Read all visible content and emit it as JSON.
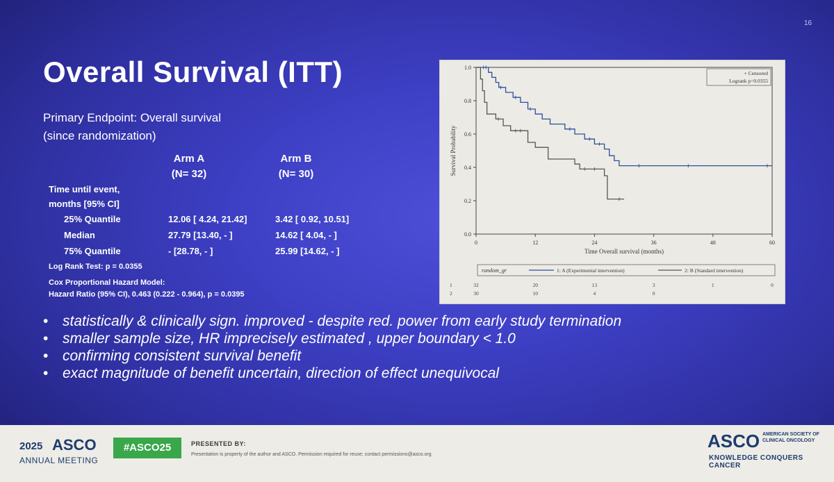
{
  "slide": {
    "number": "16",
    "title": "Overall Survival (ITT)",
    "primary_endpoint_line1": "Primary Endpoint: Overall survival",
    "primary_endpoint_line2": "(since randomization)"
  },
  "table": {
    "arm_a": {
      "name": "Arm A",
      "n": "(N= 32)"
    },
    "arm_b": {
      "name": "Arm B",
      "n": "(N= 30)"
    },
    "time_label_line1": "Time until event,",
    "time_label_line2": "months [95% CI]",
    "rows": [
      {
        "label": "25% Quantile",
        "arm_a": "12.06 [ 4.24, 21.42]",
        "arm_b": "3.42 [ 0.92, 10.51]"
      },
      {
        "label": "Median",
        "arm_a": "27.79 [13.40, - ]",
        "arm_b": "14.62 [ 4.04, - ]"
      },
      {
        "label": "75% Quantile",
        "arm_a": "- [28.78, - ]",
        "arm_b": "25.99 [14.62, - ]"
      }
    ],
    "log_rank": "Log Rank Test: p = 0.0355",
    "cox_line1": "Cox Proportional Hazard Model:",
    "cox_line2": "Hazard Ratio (95% CI), 0.463 (0.222 - 0.964), p = 0.0395"
  },
  "bullets": [
    "statistically  & clinically sign. improved  -  despite red. power from early study termination",
    "smaller sample size, HR imprecisely estimated , upper boundary  < 1.0",
    "confirming consistent survival benefit",
    "exact magnitude of benefit  uncertain, direction of effect unequivocal"
  ],
  "bullet_glyph": "•",
  "footer": {
    "year": "2025",
    "asco": "ASCO",
    "annual_meeting": "ANNUAL MEETING",
    "hashtag": "#ASCO25",
    "presented_by": "PRESENTED BY:",
    "disclaimer": "Presentation is property of the author and ASCO. Permission required for reuse; contact permissions@asco.org",
    "logo": "ASCO",
    "society_line1": "AMERICAN SOCIETY OF",
    "society_line2": "CLINICAL ONCOLOGY",
    "society_line3": "",
    "tagline": "KNOWLEDGE CONQUERS CANCER"
  },
  "colors": {
    "arm_a": "#2d4f9a",
    "arm_b": "#555555",
    "hashtag_bg": "#39a74a"
  },
  "chart_data": {
    "type": "line",
    "subtype": "kaplan-meier",
    "xlabel": "Time Overall survival (months)",
    "ylabel": "Survival Probability",
    "xlim": [
      0,
      60
    ],
    "ylim": [
      0,
      1.0
    ],
    "x_ticks": [
      0,
      12,
      24,
      36,
      48,
      60
    ],
    "x_tick_labels": [
      "0",
      "12",
      "24",
      "36",
      "48",
      "60"
    ],
    "y_ticks": [
      0.0,
      0.2,
      0.4,
      0.6,
      0.8,
      1.0
    ],
    "y_tick_labels": [
      "0.0",
      "0.2",
      "0.4",
      "0.6",
      "0.8",
      "1.0"
    ],
    "legend_top": [
      "+ Censored",
      "Logrank p=0.0355"
    ],
    "legend_top_position": "top-right",
    "legend_bottom_title": "random_gr",
    "series": [
      {
        "name": "1: A (Experimental intervention)",
        "color": "#2d4f9a",
        "steps": [
          [
            0,
            1.0
          ],
          [
            2.5,
            0.97
          ],
          [
            3.2,
            0.94
          ],
          [
            4,
            0.91
          ],
          [
            4.6,
            0.88
          ],
          [
            6,
            0.85
          ],
          [
            7.5,
            0.82
          ],
          [
            9,
            0.79
          ],
          [
            10.5,
            0.75
          ],
          [
            12,
            0.72
          ],
          [
            13.4,
            0.69
          ],
          [
            15,
            0.66
          ],
          [
            18,
            0.63
          ],
          [
            20,
            0.6
          ],
          [
            22,
            0.57
          ],
          [
            24,
            0.54
          ],
          [
            26,
            0.51
          ],
          [
            27,
            0.47
          ],
          [
            28,
            0.44
          ],
          [
            29,
            0.41
          ],
          [
            60,
            0.41
          ]
        ],
        "censored": [
          [
            1.5,
            1.0
          ],
          [
            2,
            1.0
          ],
          [
            5,
            0.88
          ],
          [
            8,
            0.82
          ],
          [
            11,
            0.75
          ],
          [
            19,
            0.63
          ],
          [
            23,
            0.57
          ],
          [
            25,
            0.54
          ],
          [
            33,
            0.41
          ],
          [
            43,
            0.41
          ],
          [
            59,
            0.41
          ]
        ]
      },
      {
        "name": "2: B (Standard intervention)",
        "color": "#555555",
        "steps": [
          [
            0,
            1.0
          ],
          [
            0.9,
            0.93
          ],
          [
            1.3,
            0.86
          ],
          [
            1.7,
            0.79
          ],
          [
            2.2,
            0.72
          ],
          [
            4,
            0.69
          ],
          [
            5.5,
            0.65
          ],
          [
            7,
            0.62
          ],
          [
            10.5,
            0.55
          ],
          [
            12,
            0.52
          ],
          [
            14.6,
            0.45
          ],
          [
            20,
            0.42
          ],
          [
            21,
            0.39
          ],
          [
            26,
            0.35
          ],
          [
            26.6,
            0.21
          ],
          [
            30,
            0.21
          ]
        ],
        "censored": [
          [
            4.5,
            0.69
          ],
          [
            8,
            0.62
          ],
          [
            9,
            0.62
          ],
          [
            22,
            0.39
          ],
          [
            24,
            0.39
          ],
          [
            29,
            0.21
          ]
        ]
      }
    ],
    "risk_table": {
      "times": [
        0,
        12,
        24,
        36,
        48,
        60
      ],
      "rows": [
        {
          "label": "1",
          "counts": [
            "32",
            "20",
            "13",
            "3",
            "1",
            "0"
          ]
        },
        {
          "label": "2",
          "counts": [
            "30",
            "10",
            "4",
            "0",
            "",
            ""
          ]
        }
      ]
    }
  }
}
